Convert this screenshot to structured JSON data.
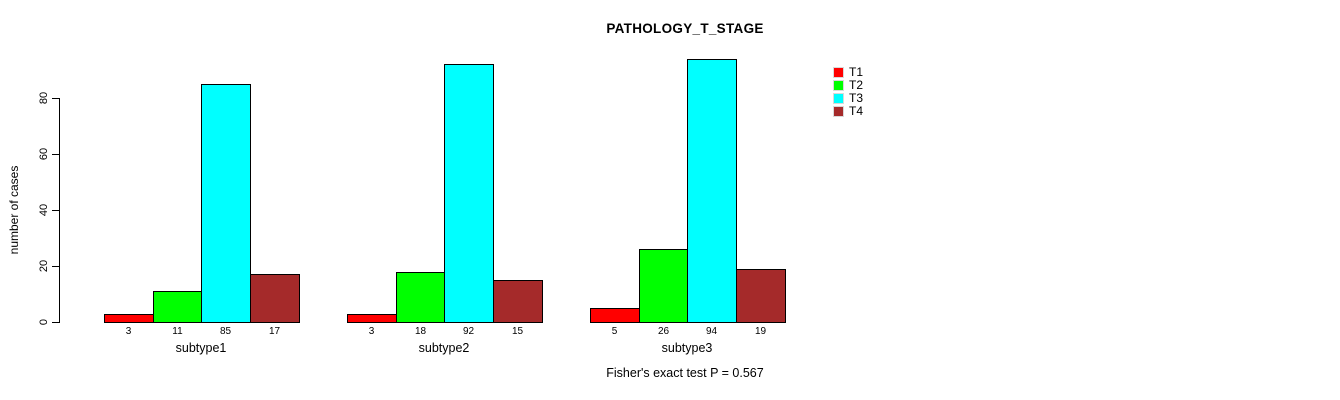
{
  "chart_data": {
    "type": "bar",
    "title": "PATHOLOGY_T_STAGE",
    "xlabel": "",
    "ylabel": "number of cases",
    "categories": [
      "subtype1",
      "subtype2",
      "subtype3"
    ],
    "series": [
      {
        "name": "T1",
        "color": "#ff0000",
        "values": [
          3,
          3,
          5
        ]
      },
      {
        "name": "T2",
        "color": "#00ff00",
        "values": [
          11,
          18,
          26
        ]
      },
      {
        "name": "T3",
        "color": "#00ffff",
        "values": [
          85,
          92,
          94
        ]
      },
      {
        "name": "T4",
        "color": "#a52a2a",
        "values": [
          17,
          15,
          19
        ]
      }
    ],
    "yticks": [
      0,
      20,
      40,
      60,
      80
    ],
    "ylim": [
      0,
      94
    ],
    "grid": false,
    "legend_position": "right-outside",
    "bar_value_labels": true,
    "annotation": "Fisher's exact test P = 0.567"
  }
}
